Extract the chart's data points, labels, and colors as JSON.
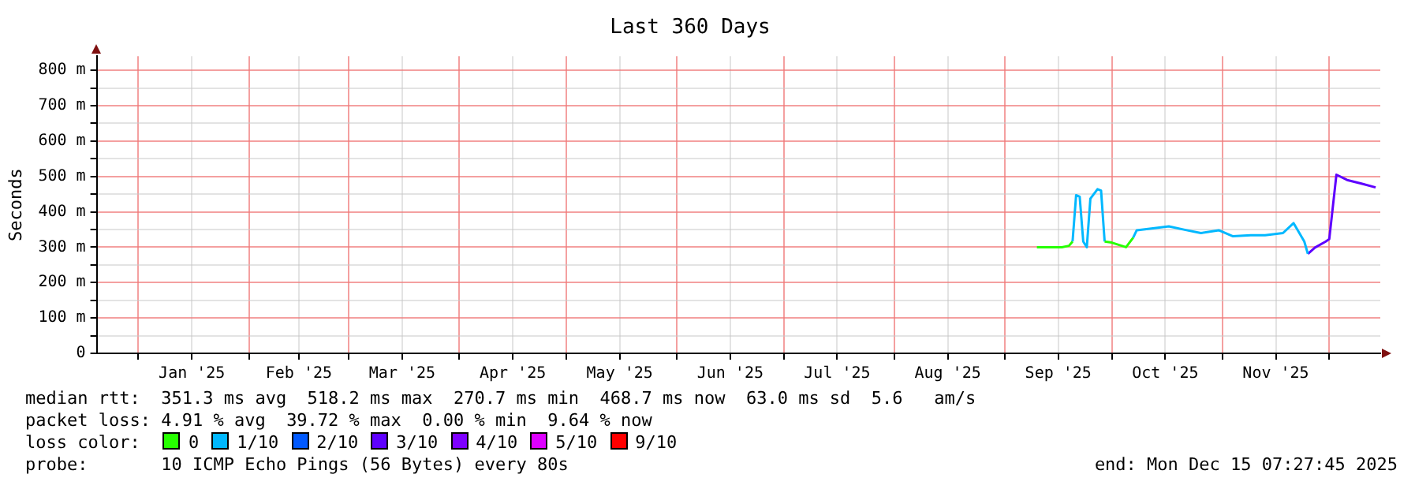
{
  "chart_data": {
    "type": "line",
    "title": "Last 360 Days",
    "ylabel": "Seconds",
    "legend_title": "loss color:",
    "legend": "bottom",
    "grid": true,
    "marker": "none",
    "line_style": "solid",
    "x": [
      "2025-09-10",
      "2025-09-17",
      "2025-09-19",
      "2025-09-20",
      "2025-09-21",
      "2025-09-22",
      "2025-09-23",
      "2025-09-24",
      "2025-09-25",
      "2025-09-27",
      "2025-09-28",
      "2025-09-29",
      "2025-10-01",
      "2025-10-05",
      "2025-10-07",
      "2025-10-08",
      "2025-10-13",
      "2025-10-17",
      "2025-10-22",
      "2025-10-26",
      "2025-10-31",
      "2025-11-04",
      "2025-11-09",
      "2025-11-13",
      "2025-11-18",
      "2025-11-21",
      "2025-11-24",
      "2025-11-25",
      "2025-11-27",
      "2025-11-30",
      "2025-12-01",
      "2025-12-03",
      "2025-12-06",
      "2025-12-10",
      "2025-12-14"
    ],
    "series": [
      {
        "name": "0",
        "color": "#26ff00",
        "values": [
          300,
          300,
          304,
          316,
          null,
          null,
          null,
          null,
          null,
          null,
          null,
          316,
          313,
          300,
          327,
          null,
          null,
          null,
          null,
          null,
          null,
          null,
          null,
          null,
          null,
          null,
          null,
          null,
          null,
          null,
          null,
          null,
          null,
          null,
          null
        ]
      },
      {
        "name": "1/10",
        "color": "#00b8ff",
        "values": [
          null,
          null,
          null,
          316,
          447,
          443,
          316,
          300,
          437,
          464,
          460,
          316,
          null,
          null,
          327,
          348,
          354,
          359,
          348,
          340,
          348,
          331,
          334,
          334,
          340,
          368,
          316,
          281,
          null,
          null,
          null,
          null,
          null,
          null,
          null
        ]
      },
      {
        "name": "2/10",
        "color": "#0059ff",
        "values": [
          null,
          null,
          null,
          null,
          null,
          null,
          null,
          null,
          null,
          null,
          null,
          null,
          null,
          null,
          null,
          null,
          null,
          null,
          null,
          null,
          null,
          null,
          null,
          null,
          null,
          null,
          null,
          null,
          null,
          null,
          null,
          null,
          null,
          null,
          null
        ]
      },
      {
        "name": "3/10",
        "color": "#5e00ff",
        "values": [
          null,
          null,
          null,
          null,
          null,
          null,
          null,
          null,
          null,
          null,
          null,
          null,
          null,
          null,
          null,
          null,
          null,
          null,
          null,
          null,
          null,
          null,
          null,
          null,
          null,
          null,
          null,
          281,
          299,
          316,
          323,
          505,
          490,
          480,
          469
        ]
      },
      {
        "name": "4/10",
        "color": "#7e00ff",
        "values": [
          null,
          null,
          null,
          null,
          null,
          null,
          null,
          null,
          null,
          null,
          null,
          null,
          null,
          null,
          null,
          null,
          null,
          null,
          null,
          null,
          null,
          null,
          null,
          null,
          null,
          null,
          null,
          null,
          null,
          null,
          null,
          null,
          null,
          null,
          null
        ]
      },
      {
        "name": "5/10",
        "color": "#dd00ff",
        "values": [
          null,
          null,
          null,
          null,
          null,
          null,
          null,
          null,
          null,
          null,
          null,
          null,
          null,
          null,
          null,
          null,
          null,
          null,
          null,
          null,
          null,
          null,
          null,
          null,
          null,
          null,
          null,
          null,
          null,
          null,
          null,
          null,
          null,
          null,
          null
        ]
      },
      {
        "name": "9/10",
        "color": "#ff0000",
        "values": [
          null,
          null,
          null,
          null,
          null,
          null,
          null,
          null,
          null,
          null,
          null,
          null,
          null,
          null,
          null,
          null,
          null,
          null,
          null,
          null,
          null,
          null,
          null,
          null,
          null,
          null,
          null,
          null,
          null,
          null,
          null,
          null,
          null,
          null,
          null
        ]
      }
    ],
    "xlim": [
      "2024-12-20T07:27",
      "2025-12-15T07:27"
    ],
    "xticks": [
      {
        "value": "2025-01-01",
        "label": null
      },
      {
        "value": "2025-01-16",
        "label": "Jan '25"
      },
      {
        "value": "2025-02-01",
        "label": null
      },
      {
        "value": "2025-02-15",
        "label": "Feb '25"
      },
      {
        "value": "2025-03-01",
        "label": null
      },
      {
        "value": "2025-03-16",
        "label": "Mar '25"
      },
      {
        "value": "2025-04-01",
        "label": null
      },
      {
        "value": "2025-04-16",
        "label": "Apr '25"
      },
      {
        "value": "2025-05-01",
        "label": null
      },
      {
        "value": "2025-05-16",
        "label": "May '25"
      },
      {
        "value": "2025-06-01",
        "label": null
      },
      {
        "value": "2025-06-16",
        "label": "Jun '25"
      },
      {
        "value": "2025-07-01",
        "label": null
      },
      {
        "value": "2025-07-16",
        "label": "Jul '25"
      },
      {
        "value": "2025-08-01",
        "label": null
      },
      {
        "value": "2025-08-16",
        "label": "Aug '25"
      },
      {
        "value": "2025-09-01",
        "label": null
      },
      {
        "value": "2025-09-16",
        "label": "Sep '25"
      },
      {
        "value": "2025-10-01",
        "label": null
      },
      {
        "value": "2025-10-16",
        "label": "Oct '25"
      },
      {
        "value": "2025-11-01",
        "label": null
      },
      {
        "value": "2025-11-16",
        "label": "Nov '25"
      },
      {
        "value": "2025-12-01",
        "label": null
      }
    ],
    "ylim": [
      0,
      840
    ],
    "yticks": [
      {
        "value": 0,
        "label": "0"
      },
      {
        "value": 50,
        "label": null
      },
      {
        "value": 100,
        "label": "100 m"
      },
      {
        "value": 150,
        "label": null
      },
      {
        "value": 200,
        "label": "200 m"
      },
      {
        "value": 250,
        "label": null
      },
      {
        "value": 300,
        "label": "300 m"
      },
      {
        "value": 350,
        "label": null
      },
      {
        "value": 400,
        "label": "400 m"
      },
      {
        "value": 450,
        "label": null
      },
      {
        "value": 500,
        "label": "500 m"
      },
      {
        "value": 550,
        "label": null
      },
      {
        "value": 600,
        "label": "600 m"
      },
      {
        "value": 650,
        "label": null
      },
      {
        "value": 700,
        "label": "700 m"
      },
      {
        "value": 750,
        "label": null
      },
      {
        "value": 800,
        "label": "800 m"
      }
    ],
    "annotations": [
      "median rtt:  351.3 ms avg  518.2 ms max  270.7 ms min  468.7 ms now  63.0 ms sd  5.6   am/s",
      "packet loss: 4.91 % avg  39.72 % max  0.00 % min  9.64 % now",
      "probe:       10 ICMP Echo Pings (56 Bytes) every 80s",
      "end: Mon Dec 15 07:27:45 2025"
    ]
  }
}
